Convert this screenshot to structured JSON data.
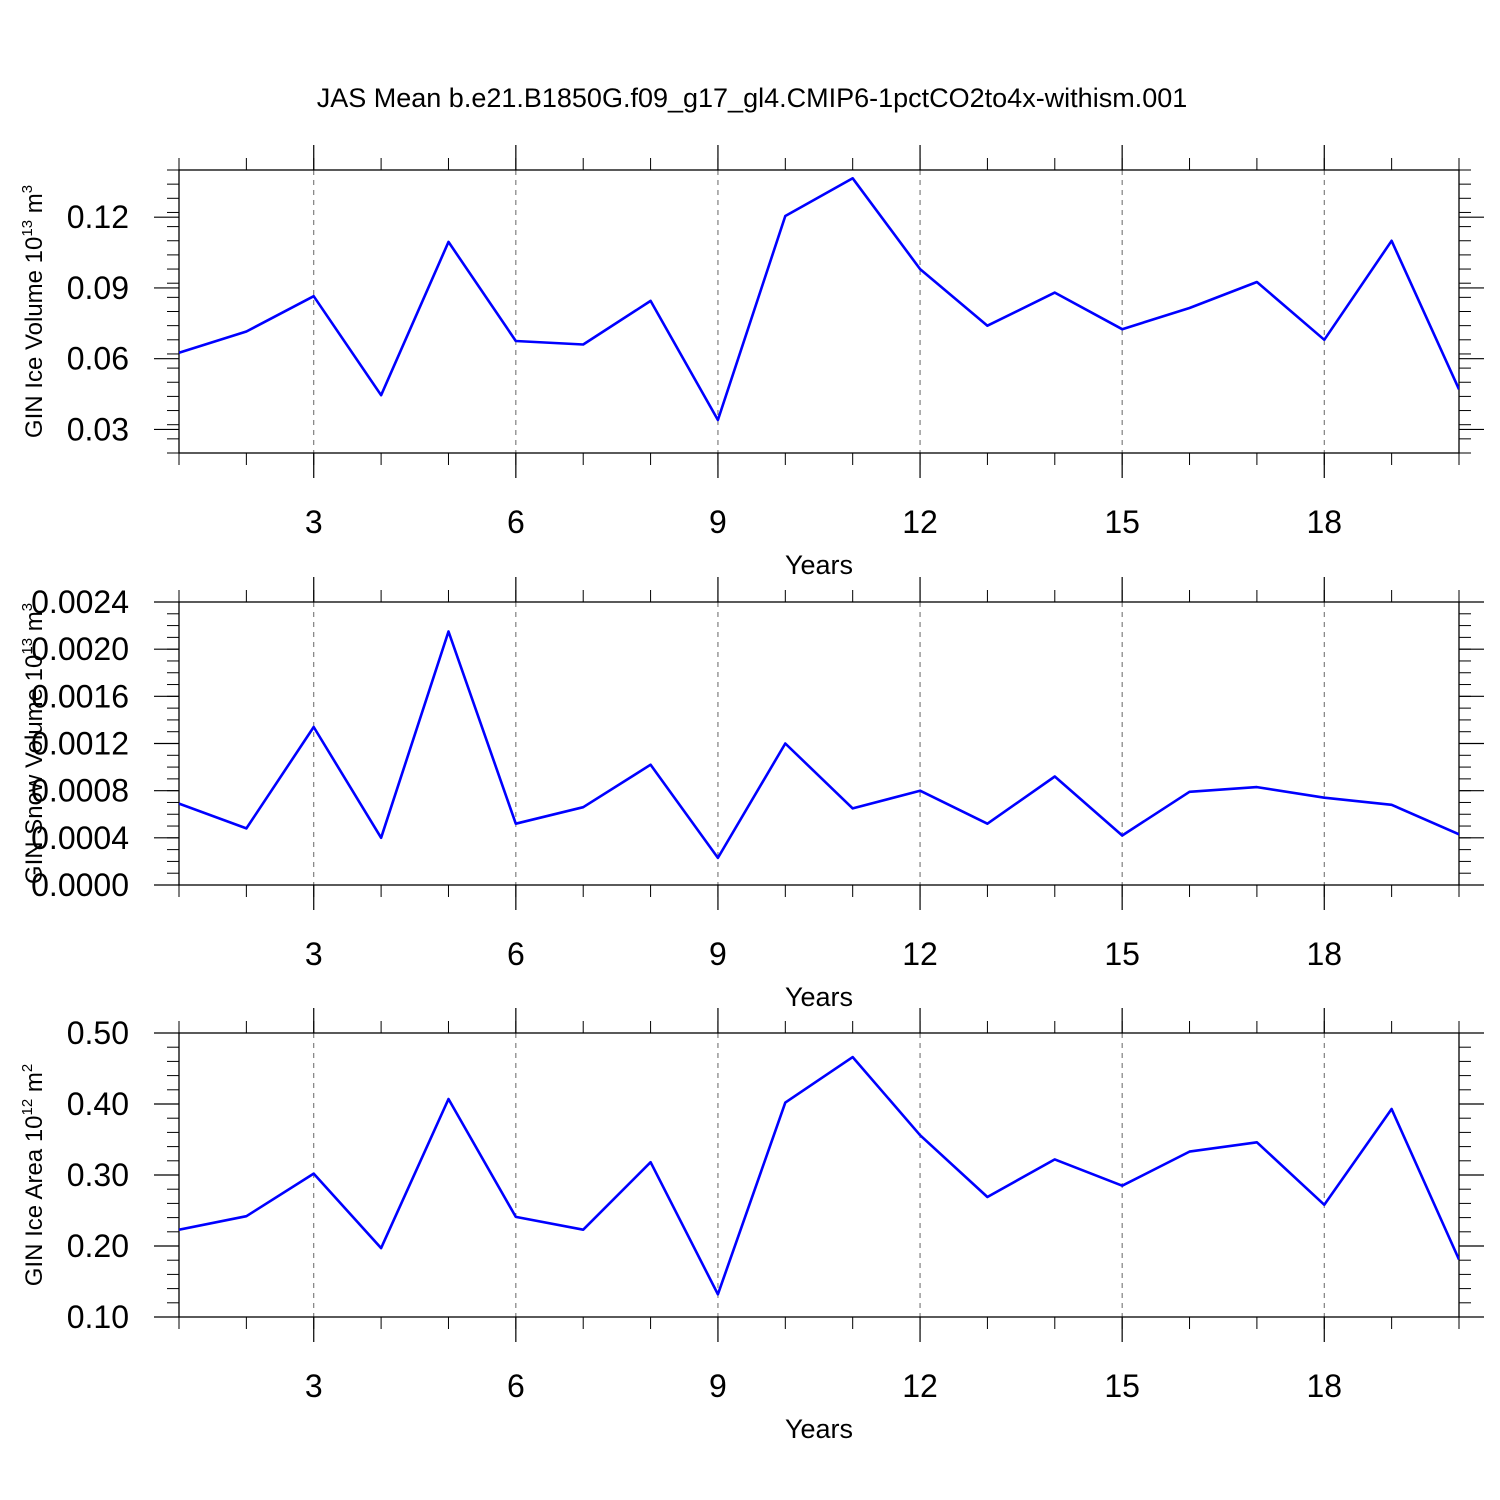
{
  "title": "JAS Mean b.e21.B1850G.f09_g17_gl4.CMIP6-1pctCO2to4x-withism.001",
  "style": {
    "line_color": "#0000ff",
    "grid_color": "#000000",
    "frame_color": "#000000"
  },
  "chart_data": [
    {
      "type": "line",
      "name": "ice-volume",
      "ylabel": {
        "text": "GIN Ice Volume 10",
        "sup": "13",
        "unit": " m",
        "unit_sup": "3"
      },
      "xlabel": "Years",
      "xlim": [
        1,
        20
      ],
      "x_ticks": [
        3,
        6,
        9,
        12,
        15,
        18
      ],
      "x_minor": 1,
      "ylim": [
        0.02,
        0.14
      ],
      "y_ticks": [
        0.03,
        0.06,
        0.09,
        0.12
      ],
      "y_tick_labels": [
        "0.03",
        "0.06",
        "0.09",
        "0.12"
      ],
      "y_minor": 0.006,
      "grid": "vertical-dashed",
      "series": [
        {
          "name": "GIN Ice Volume",
          "color": "#0000ff",
          "x": [
            1,
            2,
            3,
            4,
            5,
            6,
            7,
            8,
            9,
            10,
            11,
            12,
            13,
            14,
            15,
            16,
            17,
            18,
            19,
            20
          ],
          "values": [
            0.0625,
            0.0715,
            0.0865,
            0.0445,
            0.1095,
            0.0675,
            0.066,
            0.0845,
            0.034,
            0.1205,
            0.1365,
            0.098,
            0.074,
            0.088,
            0.0725,
            0.0815,
            0.0925,
            0.068,
            0.11,
            0.047
          ]
        }
      ]
    },
    {
      "type": "line",
      "name": "snow-volume",
      "ylabel": {
        "text": "GIN Snow Volume 10",
        "sup": "13",
        "unit": " m",
        "unit_sup": "3"
      },
      "xlabel": "Years",
      "xlim": [
        1,
        20
      ],
      "x_ticks": [
        3,
        6,
        9,
        12,
        15,
        18
      ],
      "x_minor": 1,
      "ylim": [
        0.0,
        0.0024
      ],
      "y_ticks": [
        0.0,
        0.0004,
        0.0008,
        0.0012,
        0.0016,
        0.002,
        0.0024
      ],
      "y_tick_labels": [
        "0.0000",
        "0.0004",
        "0.0008",
        "0.0012",
        "0.0016",
        "0.0020",
        "0.0024"
      ],
      "y_minor": 0.0001,
      "grid": "vertical-dashed",
      "series": [
        {
          "name": "GIN Snow Volume",
          "color": "#0000ff",
          "x": [
            1,
            2,
            3,
            4,
            5,
            6,
            7,
            8,
            9,
            10,
            11,
            12,
            13,
            14,
            15,
            16,
            17,
            18,
            19,
            20
          ],
          "values": [
            0.00069,
            0.00048,
            0.00134,
            0.0004,
            0.00215,
            0.00052,
            0.00066,
            0.00102,
            0.00023,
            0.0012,
            0.00065,
            0.0008,
            0.00052,
            0.00092,
            0.00042,
            0.00079,
            0.00083,
            0.00074,
            0.00068,
            0.00043
          ]
        }
      ]
    },
    {
      "type": "line",
      "name": "ice-area",
      "ylabel": {
        "text": "GIN Ice Area 10",
        "sup": "12",
        "unit": " m",
        "unit_sup": "2"
      },
      "xlabel": "Years",
      "xlim": [
        1,
        20
      ],
      "x_ticks": [
        3,
        6,
        9,
        12,
        15,
        18
      ],
      "x_minor": 1,
      "ylim": [
        0.1,
        0.5
      ],
      "y_ticks": [
        0.1,
        0.2,
        0.3,
        0.4,
        0.5
      ],
      "y_tick_labels": [
        "0.10",
        "0.20",
        "0.30",
        "0.40",
        "0.50"
      ],
      "y_minor": 0.02,
      "grid": "vertical-dashed",
      "series": [
        {
          "name": "GIN Ice Area",
          "color": "#0000ff",
          "x": [
            1,
            2,
            3,
            4,
            5,
            6,
            7,
            8,
            9,
            10,
            11,
            12,
            13,
            14,
            15,
            16,
            17,
            18,
            19,
            20
          ],
          "values": [
            0.223,
            0.242,
            0.302,
            0.197,
            0.407,
            0.241,
            0.223,
            0.318,
            0.132,
            0.402,
            0.466,
            0.356,
            0.269,
            0.322,
            0.285,
            0.333,
            0.346,
            0.258,
            0.393,
            0.181
          ]
        }
      ]
    }
  ]
}
